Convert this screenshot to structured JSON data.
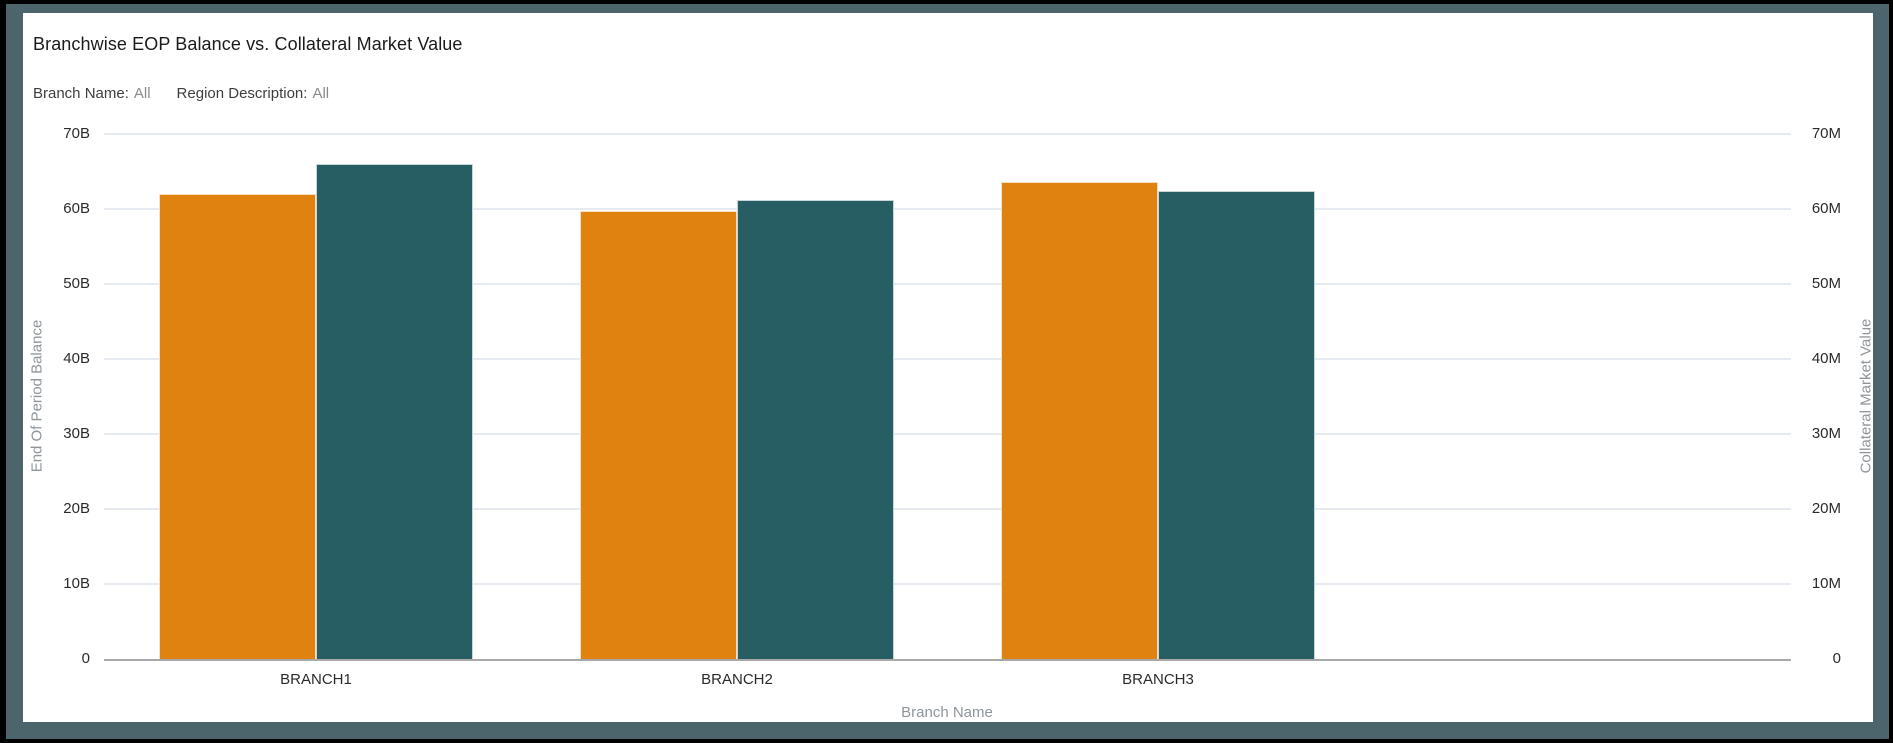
{
  "window": {
    "outer_border_color": "#000000",
    "frame_color": "#4C646C",
    "card_background": "#FFFFFF"
  },
  "header": {
    "title": "Branchwise EOP Balance vs. Collateral Market Value",
    "filters": [
      {
        "label": "Branch Name:",
        "value": "All"
      },
      {
        "label": "Region Description:",
        "value": "All"
      }
    ]
  },
  "chart_data": {
    "type": "bar",
    "title": "Branchwise EOP Balance vs. Collateral Market Value",
    "categories": [
      "BRANCH1",
      "BRANCH2",
      "BRANCH3"
    ],
    "series": [
      {
        "name": "End Of Period Balance",
        "axis": "left",
        "unit": "B",
        "color": "#DF820F",
        "values": [
          62.0,
          59.7,
          63.6
        ]
      },
      {
        "name": "Collateral Market Value",
        "axis": "right",
        "unit": "M",
        "color": "#265E63",
        "values": [
          66.0,
          61.2,
          62.4
        ]
      }
    ],
    "xlabel": "Branch Name",
    "ylabel_left": "End Of Period Balance",
    "ylabel_right": "Collateral Market Value",
    "ylim_left": [
      0,
      70
    ],
    "ylim_right": [
      0,
      70
    ],
    "yticks_left": [
      "0",
      "10B",
      "20B",
      "30B",
      "40B",
      "50B",
      "60B",
      "70B"
    ],
    "yticks_right": [
      "0",
      "10M",
      "20M",
      "30M",
      "40M",
      "50M",
      "60M",
      "70M"
    ],
    "grid": "horizontal",
    "legend": "none",
    "colors": {
      "gridline": "#E6EBF1",
      "axis_line": "#A9A9A9",
      "tick_label": "#2B2B2B",
      "axis_title": "#8F969B"
    }
  }
}
